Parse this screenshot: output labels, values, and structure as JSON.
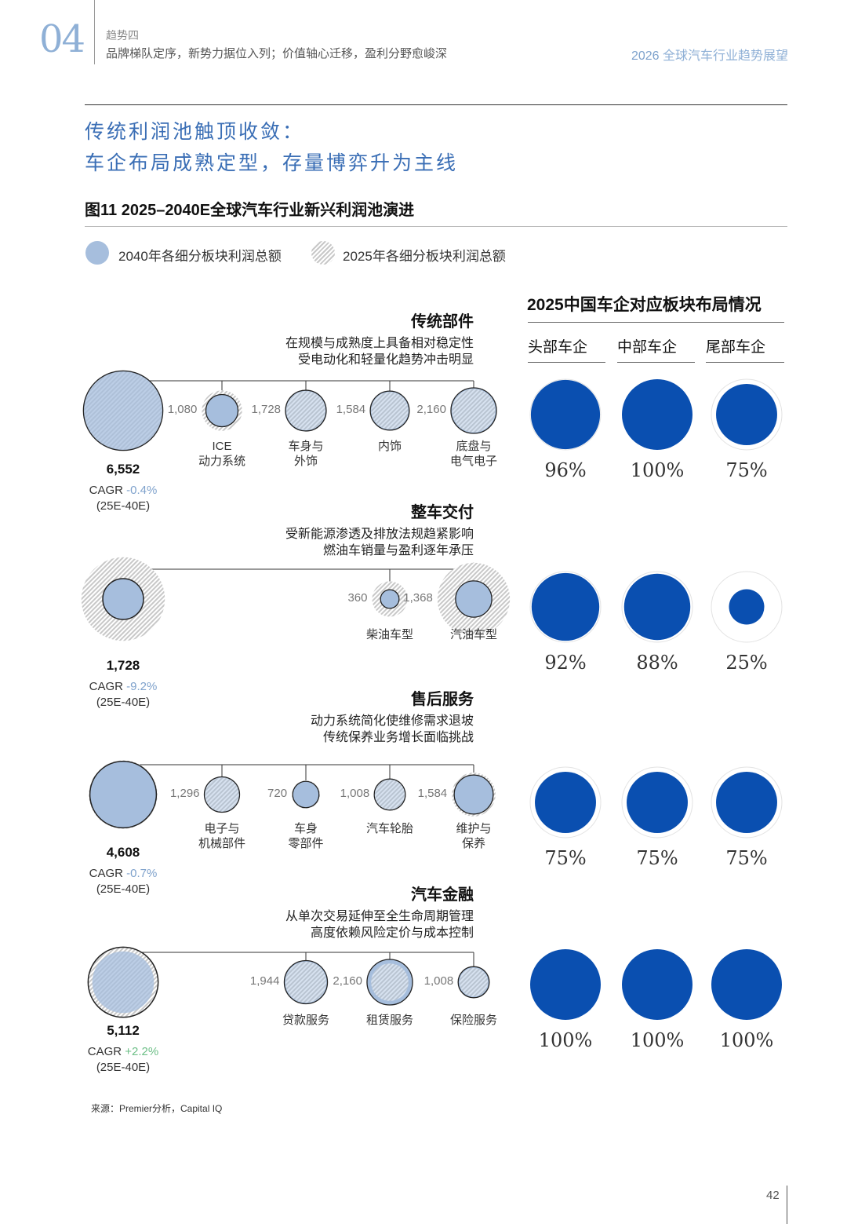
{
  "header": {
    "chapter_num": "04",
    "kicker": "趋势四",
    "subtitle": "品牌梯队定序，新势力据位入列；价值轴心迁移，盈利分野愈峻深",
    "report_year": "2026",
    "report_title": "全球汽车行业趋势展望"
  },
  "headline": {
    "line1": "传统利润池触顶收敛：",
    "line2": "车企布局成熟定型，存量博弈升为主线"
  },
  "figure_title": "图11 2025–2040E全球汽车行业新兴利润池演进",
  "legend": {
    "item_2040": "2040年各细分板块利润总额",
    "item_2025": "2025年各细分板块利润总额"
  },
  "right_panel": {
    "title": "2025中国车企对应板块布局情况",
    "tiers": [
      "头部车企",
      "中部车企",
      "尾部车企"
    ]
  },
  "colors": {
    "bubble_2040": "#a6bedd",
    "bubble_2025_hatch": "#c8c8c8",
    "layout_fill": "#0a4fb0",
    "header_accent": "#8fb0d6",
    "cagr_negative": "#7fa2cc",
    "cagr_positive": "#6dbf87"
  },
  "chart_data": [
    {
      "type": "bubble",
      "title": "传统部件",
      "desc": [
        "在规模与成熟度上具备相对稳定性",
        "受电动化和轻量化趋势冲击明显"
      ],
      "total_2040": 6552,
      "total_label": "6,552",
      "total_2025_rel": 0.99,
      "cagr_label": "CAGR",
      "cagr_value": "-0.4%",
      "cagr_sign": "neg",
      "period": "(25E-40E)",
      "items": [
        {
          "value": 1080,
          "label": "1,080",
          "name": [
            "ICE",
            "动力系统"
          ],
          "rel_2025": 1.25
        },
        {
          "value": 1728,
          "label": "1,728",
          "name": [
            "车身与",
            "外饰"
          ],
          "rel_2025": 0.96
        },
        {
          "value": 1584,
          "label": "1,584",
          "name": [
            "内饰"
          ],
          "rel_2025": 0.95
        },
        {
          "value": 2160,
          "label": "2,160",
          "name": [
            "底盘与",
            "电气电子"
          ],
          "rel_2025": 0.95
        }
      ],
      "layout_pct": [
        96,
        100,
        75
      ],
      "layout_pct_labels": [
        "96%",
        "100%",
        "75%"
      ]
    },
    {
      "type": "bubble",
      "title": "整车交付",
      "desc": [
        "受新能源渗透及排放法规趋紧影响",
        "燃油车销量与盈利逐年承压"
      ],
      "total_2040": 1728,
      "total_label": "1,728",
      "total_2025_rel": 2.05,
      "cagr_label": "CAGR",
      "cagr_value": "-9.2%",
      "cagr_sign": "neg",
      "period": "(25E-40E)",
      "items": [
        {
          "value": 360,
          "label": "360",
          "name": [
            "柴油车型"
          ],
          "rel_2025": 1.9
        },
        {
          "value": 1368,
          "label": "1,368",
          "name": [
            "汽油车型"
          ],
          "rel_2025": 2.0
        }
      ],
      "layout_pct": [
        92,
        88,
        25
      ],
      "layout_pct_labels": [
        "92%",
        "88%",
        "25%"
      ]
    },
    {
      "type": "bubble",
      "title": "售后服务",
      "desc": [
        "动力系统简化使维修需求退坡",
        "传统保养业务增长面临挑战"
      ],
      "total_2040": 4608,
      "total_label": "4,608",
      "total_2025_rel": 1.03,
      "cagr_label": "CAGR",
      "cagr_value": "-0.7%",
      "cagr_sign": "neg",
      "period": "(25E-40E)",
      "items": [
        {
          "value": 1296,
          "label": "1,296",
          "name": [
            "电子与",
            "机械部件"
          ],
          "rel_2025": 0.97
        },
        {
          "value": 720,
          "label": "720",
          "name": [
            "车身",
            "零部件"
          ],
          "rel_2025": 1.07
        },
        {
          "value": 1008,
          "label": "1,008",
          "name": [
            "汽车轮胎"
          ],
          "rel_2025": 0.97
        },
        {
          "value": 1584,
          "label": "1,584",
          "name": [
            "维护与",
            "保养"
          ],
          "rel_2025": 1.12
        }
      ],
      "layout_pct": [
        75,
        75,
        75
      ],
      "layout_pct_labels": [
        "75%",
        "75%",
        "75%"
      ]
    },
    {
      "type": "bubble",
      "title": "汽车金融",
      "desc": [
        "从单次交易延伸至全生命周期管理",
        "高度依赖风险定价与成本控制"
      ],
      "total_2040": 5112,
      "total_label": "5,112",
      "total_2025_rel": 0.88,
      "cagr_label": "CAGR",
      "cagr_value": "+2.2%",
      "cagr_sign": "pos",
      "period": "(25E-40E)",
      "items": [
        {
          "value": 1944,
          "label": "1,944",
          "name": [
            "贷款服务"
          ],
          "rel_2025": 0.95
        },
        {
          "value": 2160,
          "label": "2,160",
          "name": [
            "租赁服务"
          ],
          "rel_2025": 0.82
        },
        {
          "value": 1008,
          "label": "1,008",
          "name": [
            "保险服务"
          ],
          "rel_2025": 0.92
        }
      ],
      "layout_pct": [
        100,
        100,
        100
      ],
      "layout_pct_labels": [
        "100%",
        "100%",
        "100%"
      ]
    }
  ],
  "source": "来源：Premier分析，Capital IQ",
  "page_number": "42"
}
